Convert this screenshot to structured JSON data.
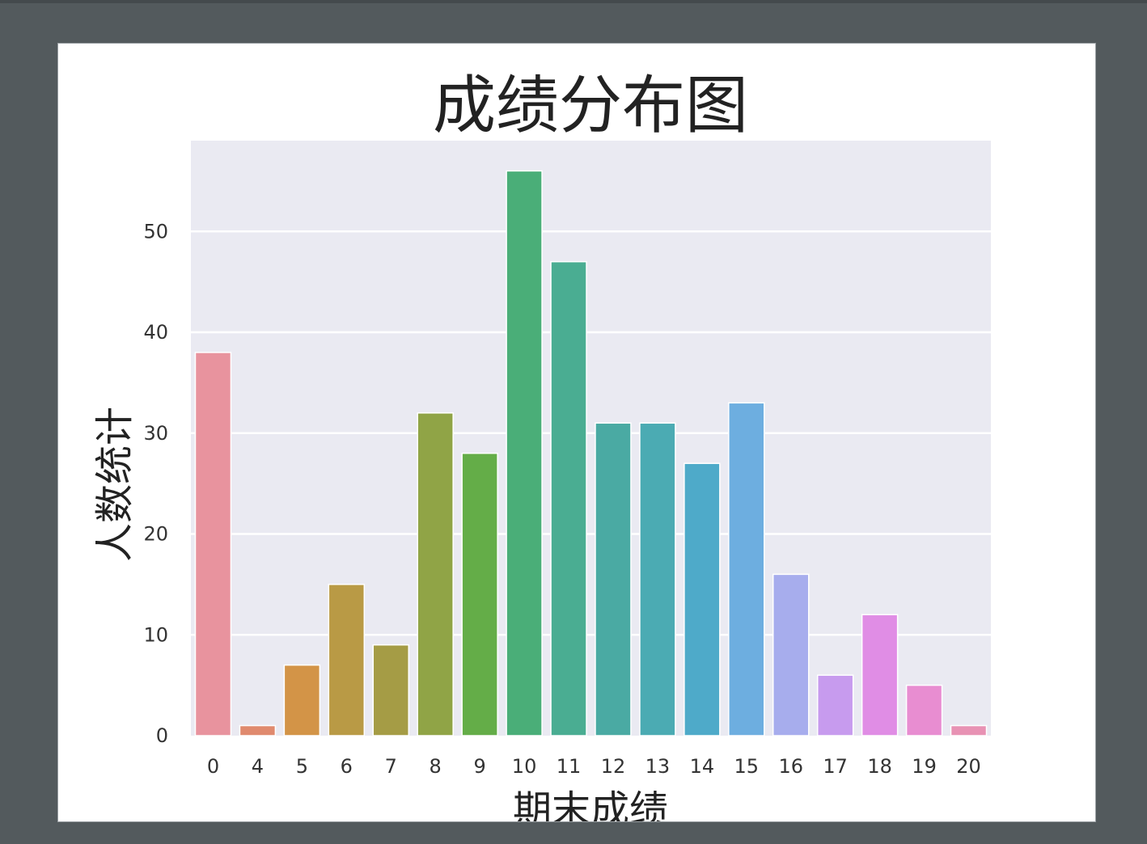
{
  "chart_data": {
    "type": "bar",
    "title": "成绩分布图",
    "xlabel": "期末成绩",
    "ylabel": "人数统计",
    "categories": [
      "0",
      "4",
      "5",
      "6",
      "7",
      "8",
      "9",
      "10",
      "11",
      "12",
      "13",
      "14",
      "15",
      "16",
      "17",
      "18",
      "19",
      "20"
    ],
    "values": [
      38,
      1,
      7,
      15,
      9,
      32,
      28,
      56,
      47,
      31,
      31,
      27,
      33,
      16,
      6,
      12,
      5,
      1
    ],
    "ylim": [
      0,
      59
    ],
    "yticks": [
      0,
      10,
      20,
      30,
      40,
      50
    ],
    "grid": true,
    "legend": "none",
    "colors": [
      "#e8939e",
      "#e08a6e",
      "#d39447",
      "#b99a45",
      "#a59c45",
      "#90a446",
      "#64ad48",
      "#4aae78",
      "#4aad92",
      "#4aaaa3",
      "#4babb3",
      "#4eaac9",
      "#6daee0",
      "#a7aded",
      "#c79bee",
      "#e08de5",
      "#e88dd1",
      "#e892b4"
    ],
    "background": "#eaeaf2"
  }
}
